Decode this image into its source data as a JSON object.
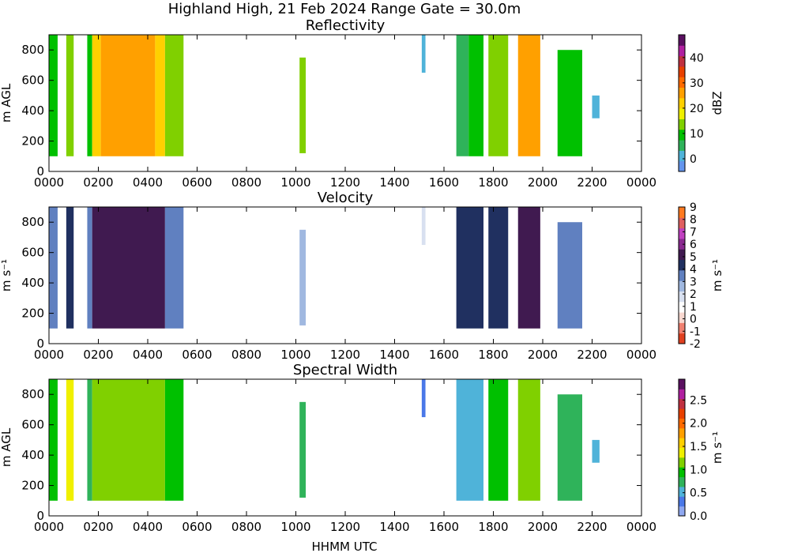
{
  "figure": {
    "title": "Highland High, 21 Feb 2024 Range Gate = 30.0m",
    "xlabel": "HHMM UTC"
  },
  "chart_data": [
    {
      "type": "heatmap",
      "title": "Reflectivity",
      "ylabel": "m AGL",
      "xlim": [
        0,
        2400
      ],
      "ylim": [
        0,
        900
      ],
      "x_ticks": [
        "0000",
        "0200",
        "0400",
        "0600",
        "0800",
        "1000",
        "1200",
        "1400",
        "1600",
        "1800",
        "2000",
        "2200",
        "0000"
      ],
      "y_ticks": [
        "0",
        "200",
        "400",
        "600",
        "800"
      ],
      "colorbar": {
        "label": "dBZ",
        "range": [
          -5,
          49
        ],
        "ticks": [
          "0",
          "10",
          "20",
          "30",
          "40"
        ],
        "tick_values": [
          0,
          10,
          20,
          30,
          40
        ],
        "colors": [
          "#6495ed",
          "#4fb3d9",
          "#2fb35a",
          "#00c000",
          "#80d000",
          "#f0f000",
          "#ffd000",
          "#ffa000",
          "#ff6a00",
          "#e84000",
          "#c03040",
          "#b020a0",
          "#5a1060"
        ]
      },
      "echo_segments": [
        {
          "start": 0,
          "end": 35,
          "bottom": 100,
          "top": 900,
          "value": 8
        },
        {
          "start": 70,
          "end": 100,
          "bottom": 100,
          "top": 900,
          "value": 14
        },
        {
          "start": 155,
          "end": 175,
          "bottom": 100,
          "top": 900,
          "value": 10
        },
        {
          "start": 175,
          "end": 210,
          "bottom": 100,
          "top": 900,
          "value": 22
        },
        {
          "start": 210,
          "end": 430,
          "bottom": 100,
          "top": 900,
          "value": 27
        },
        {
          "start": 430,
          "end": 470,
          "bottom": 100,
          "top": 900,
          "value": 20
        },
        {
          "start": 470,
          "end": 545,
          "bottom": 100,
          "top": 900,
          "value": 13
        },
        {
          "start": 1015,
          "end": 1040,
          "bottom": 120,
          "top": 750,
          "value": 12
        },
        {
          "start": 1510,
          "end": 1525,
          "bottom": 650,
          "top": 900,
          "value": 3
        },
        {
          "start": 1650,
          "end": 1700,
          "bottom": 100,
          "top": 900,
          "value": 4
        },
        {
          "start": 1700,
          "end": 1760,
          "bottom": 100,
          "top": 900,
          "value": 8
        },
        {
          "start": 1780,
          "end": 1860,
          "bottom": 100,
          "top": 900,
          "value": 15
        },
        {
          "start": 1900,
          "end": 1990,
          "bottom": 100,
          "top": 900,
          "value": 25
        },
        {
          "start": 2060,
          "end": 2160,
          "bottom": 100,
          "top": 800,
          "value": 10
        },
        {
          "start": 2200,
          "end": 2230,
          "bottom": 350,
          "top": 500,
          "value": 3
        }
      ]
    },
    {
      "type": "heatmap",
      "title": "Velocity",
      "ylabel": "m $s^{-1}$",
      "xlim": [
        0,
        2400
      ],
      "ylim": [
        0,
        900
      ],
      "x_ticks": [
        "0000",
        "0200",
        "0400",
        "0600",
        "0800",
        "1000",
        "1200",
        "1400",
        "1600",
        "1800",
        "2000",
        "2200",
        "0000"
      ],
      "y_ticks": [
        "0",
        "200",
        "400",
        "600",
        "800"
      ],
      "colorbar": {
        "label": "m $s^{-1}$",
        "range": [
          -2,
          9
        ],
        "ticks": [
          "-2",
          "-1",
          "0",
          "1",
          "2",
          "3",
          "4",
          "5",
          "6",
          "7",
          "8",
          "9"
        ],
        "tick_values": [
          -2,
          -1,
          0,
          1,
          2,
          3,
          4,
          5,
          6,
          7,
          8,
          9
        ],
        "colors": [
          "#e04020",
          "#f08070",
          "#f8d8d0",
          "#ffffff",
          "#d8e0f0",
          "#a0b8e0",
          "#6080c0",
          "#203060",
          "#401a50",
          "#8a2a90",
          "#c040c0",
          "#e06060",
          "#ff7a20"
        ]
      },
      "echo_segments": [
        {
          "start": 0,
          "end": 35,
          "bottom": 100,
          "top": 900,
          "value": 3.5
        },
        {
          "start": 70,
          "end": 100,
          "bottom": 100,
          "top": 900,
          "value": 4.5
        },
        {
          "start": 155,
          "end": 175,
          "bottom": 100,
          "top": 900,
          "value": 3.5
        },
        {
          "start": 175,
          "end": 470,
          "bottom": 100,
          "top": 900,
          "value": 5.5
        },
        {
          "start": 470,
          "end": 545,
          "bottom": 100,
          "top": 900,
          "value": 3.5
        },
        {
          "start": 1015,
          "end": 1040,
          "bottom": 120,
          "top": 750,
          "value": 3
        },
        {
          "start": 1510,
          "end": 1525,
          "bottom": 650,
          "top": 900,
          "value": 1.5
        },
        {
          "start": 1650,
          "end": 1760,
          "bottom": 100,
          "top": 900,
          "value": 4.5
        },
        {
          "start": 1780,
          "end": 1860,
          "bottom": 100,
          "top": 900,
          "value": 4.5
        },
        {
          "start": 1900,
          "end": 1990,
          "bottom": 100,
          "top": 900,
          "value": 5
        },
        {
          "start": 2060,
          "end": 2160,
          "bottom": 100,
          "top": 800,
          "value": 3.5
        },
        {
          "start": 2200,
          "end": 2230,
          "bottom": 350,
          "top": 500,
          "value": 1
        }
      ]
    },
    {
      "type": "heatmap",
      "title": "Spectral Width",
      "ylabel": "m AGL",
      "xlim": [
        0,
        2400
      ],
      "ylim": [
        0,
        900
      ],
      "x_ticks": [
        "0000",
        "0200",
        "0400",
        "0600",
        "0800",
        "1000",
        "1200",
        "1400",
        "1600",
        "1800",
        "2000",
        "2200",
        "0000"
      ],
      "y_ticks": [
        "0",
        "200",
        "400",
        "600",
        "800"
      ],
      "colorbar": {
        "label": "m $s^{-1}$",
        "range": [
          0,
          2.95
        ],
        "ticks": [
          "0.0",
          "0.5",
          "1.0",
          "1.5",
          "2.0",
          "2.5"
        ],
        "tick_values": [
          0,
          0.5,
          1.0,
          1.5,
          2.0,
          2.5
        ],
        "colors": [
          "#8fa8f0",
          "#4a78e8",
          "#4fb3d9",
          "#2fb35a",
          "#00c000",
          "#80d000",
          "#f0f000",
          "#ffd000",
          "#ffa000",
          "#ff6a00",
          "#e84000",
          "#c03040",
          "#b020a0",
          "#5a1060"
        ]
      },
      "echo_segments": [
        {
          "start": 0,
          "end": 35,
          "bottom": 100,
          "top": 900,
          "value": 0.9
        },
        {
          "start": 70,
          "end": 100,
          "bottom": 100,
          "top": 900,
          "value": 1.3
        },
        {
          "start": 155,
          "end": 175,
          "bottom": 100,
          "top": 900,
          "value": 0.8
        },
        {
          "start": 175,
          "end": 470,
          "bottom": 100,
          "top": 900,
          "value": 1.2
        },
        {
          "start": 470,
          "end": 545,
          "bottom": 100,
          "top": 900,
          "value": 0.9
        },
        {
          "start": 1015,
          "end": 1040,
          "bottom": 120,
          "top": 750,
          "value": 0.8
        },
        {
          "start": 1510,
          "end": 1525,
          "bottom": 650,
          "top": 900,
          "value": 0.4
        },
        {
          "start": 1650,
          "end": 1760,
          "bottom": 100,
          "top": 900,
          "value": 0.6
        },
        {
          "start": 1780,
          "end": 1860,
          "bottom": 100,
          "top": 900,
          "value": 1.0
        },
        {
          "start": 1900,
          "end": 1990,
          "bottom": 100,
          "top": 900,
          "value": 1.1
        },
        {
          "start": 2060,
          "end": 2160,
          "bottom": 100,
          "top": 800,
          "value": 0.8
        },
        {
          "start": 2200,
          "end": 2230,
          "bottom": 350,
          "top": 500,
          "value": 0.5
        }
      ]
    }
  ]
}
